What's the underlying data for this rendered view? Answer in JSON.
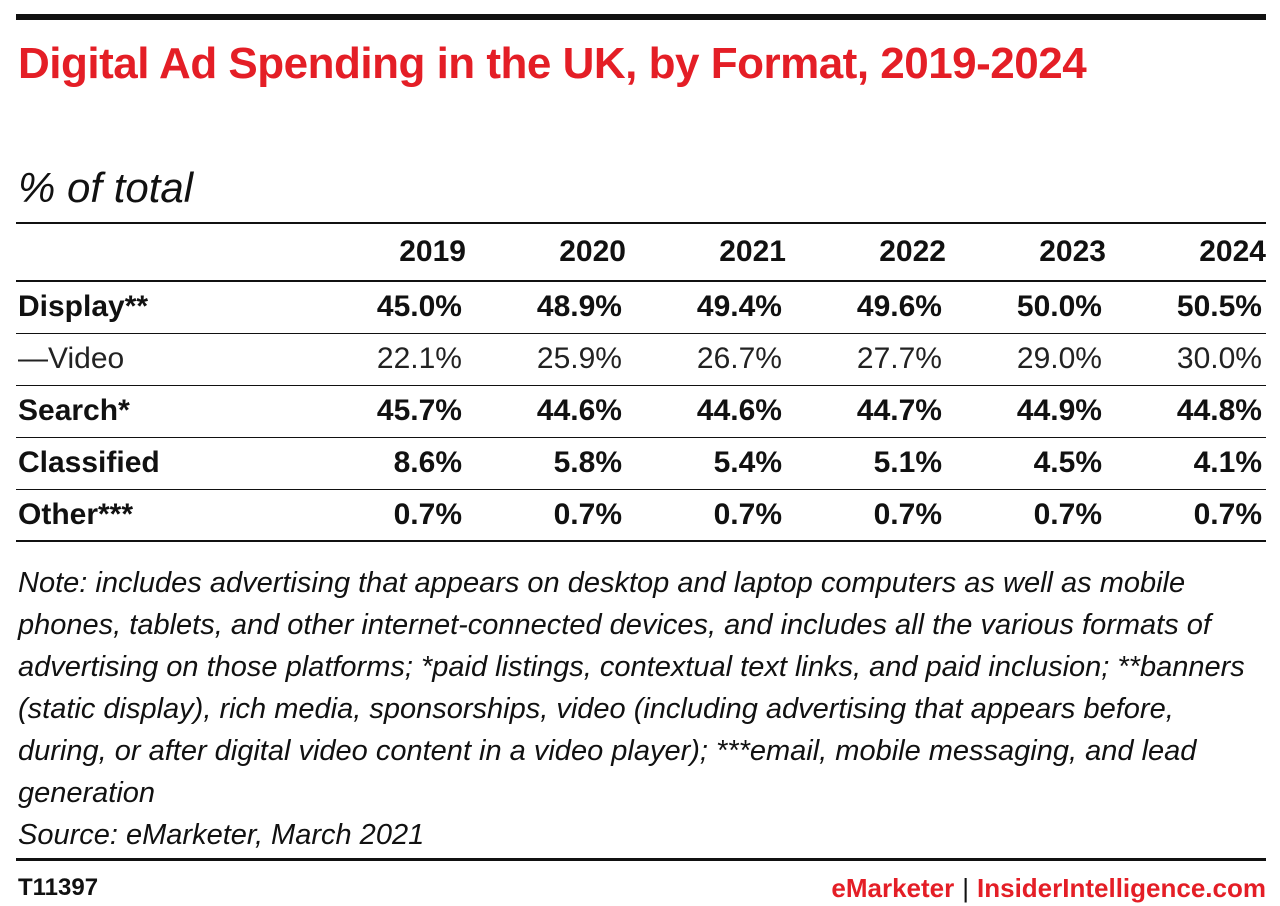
{
  "chart_data": {
    "type": "table",
    "title": "Digital Ad Spending in the UK, by Format, 2019-2024",
    "subtitle": "% of total",
    "columns": [
      "2019",
      "2020",
      "2021",
      "2022",
      "2023",
      "2024"
    ],
    "rows": [
      {
        "label": "Display**",
        "bold": true,
        "values": [
          "45.0%",
          "48.9%",
          "49.4%",
          "49.6%",
          "50.0%",
          "50.5%"
        ]
      },
      {
        "label": "—Video",
        "bold": false,
        "values": [
          "22.1%",
          "25.9%",
          "26.7%",
          "27.7%",
          "29.0%",
          "30.0%"
        ]
      },
      {
        "label": "Search*",
        "bold": true,
        "values": [
          "45.7%",
          "44.6%",
          "44.6%",
          "44.7%",
          "44.9%",
          "44.8%"
        ]
      },
      {
        "label": "Classified",
        "bold": true,
        "values": [
          "8.6%",
          "5.8%",
          "5.4%",
          "5.1%",
          "4.5%",
          "4.1%"
        ]
      },
      {
        "label": "Other***",
        "bold": true,
        "values": [
          "0.7%",
          "0.7%",
          "0.7%",
          "0.7%",
          "0.7%",
          "0.7%"
        ]
      }
    ],
    "note": "Note: includes advertising that appears on desktop and laptop computers as well as mobile phones, tablets, and other internet-connected devices, and includes all the various formats of advertising on those platforms; *paid listings, contextual text links, and paid inclusion; **banners (static display), rich media, sponsorships, video (including advertising that appears before, during, or after digital video content in a video player); ***email, mobile messaging, and lead generation",
    "source": "Source: eMarketer, March 2021"
  },
  "footer": {
    "chart_id": "T11397",
    "brand_emarketer": "eMarketer",
    "separator": "|",
    "brand_insider": "InsiderIntelligence.com"
  },
  "colors": {
    "accent": "#e41e26",
    "text": "#111111",
    "rule": "#111111"
  }
}
